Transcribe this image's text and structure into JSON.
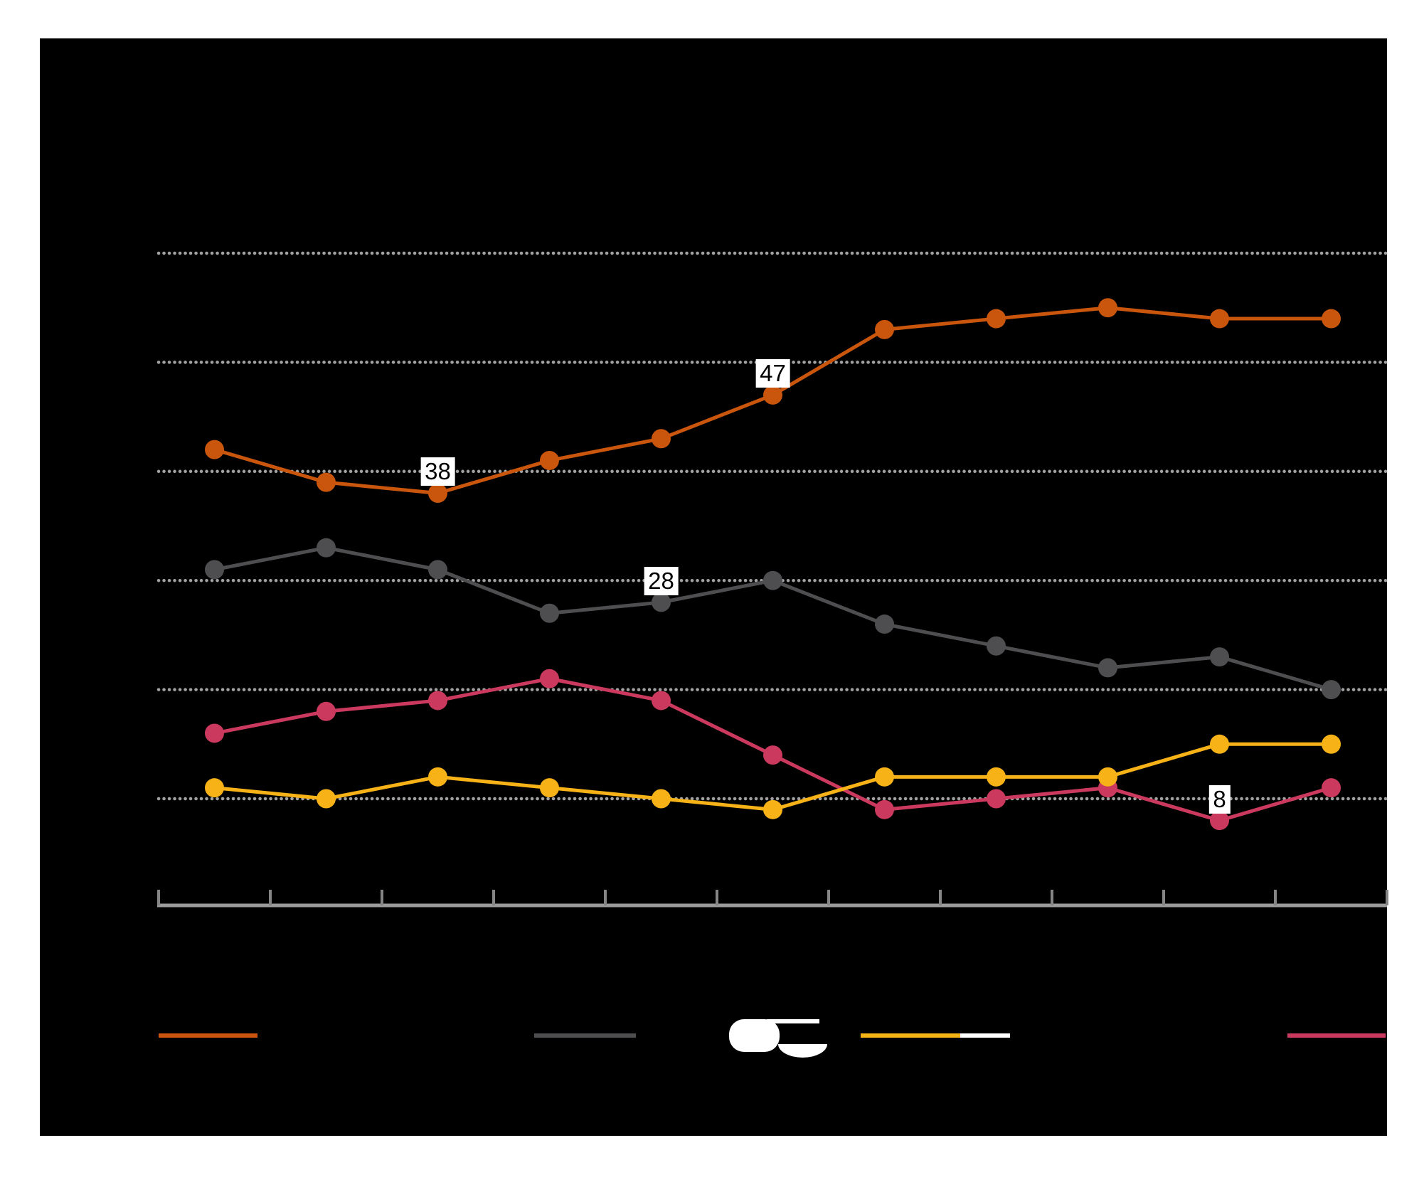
{
  "chart_data": {
    "type": "line",
    "x_points": 11,
    "x_tick_count": 12,
    "ylim": [
      0,
      60
    ],
    "gridline_values": [
      10,
      20,
      30,
      40,
      50,
      60
    ],
    "grid_style": "dotted",
    "legend_position": "bottom",
    "series": [
      {
        "name": "orange",
        "color": "#c9560c",
        "values": [
          42,
          39,
          38,
          41,
          43,
          47,
          53,
          54,
          55,
          54,
          54
        ]
      },
      {
        "name": "dark-gray",
        "color": "#4e4e50",
        "values": [
          31,
          33,
          31,
          27,
          28,
          30,
          26,
          24,
          22,
          23,
          20
        ]
      },
      {
        "name": "pink",
        "color": "#cb3a5e",
        "values": [
          16,
          18,
          19,
          21,
          19,
          14,
          9,
          10,
          11,
          8,
          11
        ]
      },
      {
        "name": "yellow",
        "color": "#f7b217",
        "values": [
          11,
          10,
          12,
          11,
          10,
          9,
          12,
          12,
          12,
          15,
          15
        ]
      }
    ],
    "point_labels": [
      {
        "series": "orange",
        "index": 2,
        "text": "38"
      },
      {
        "series": "orange",
        "index": 5,
        "text": "47"
      },
      {
        "series": "dark-gray",
        "index": 4,
        "text": "28"
      },
      {
        "series": "pink",
        "index": 9,
        "text": "8"
      }
    ]
  },
  "legend": {
    "swatches": [
      {
        "name": "orange",
        "color": "#c9560c"
      },
      {
        "name": "dark-gray",
        "color": "#4e4e50"
      },
      {
        "name": "yellow",
        "color": "#f7b217"
      },
      {
        "name": "white",
        "color": "#ffffff"
      },
      {
        "name": "pink",
        "color": "#cb3a5e"
      }
    ],
    "icon_color": "#ffffff"
  },
  "colors": {
    "page_bg": "#ffffff",
    "card_bg": "#000000",
    "gridline": "#a2a2a2",
    "axis_line": "#9c9c9c",
    "tick": "#858585",
    "label_bg": "#ffffff",
    "label_text": "#000000"
  }
}
